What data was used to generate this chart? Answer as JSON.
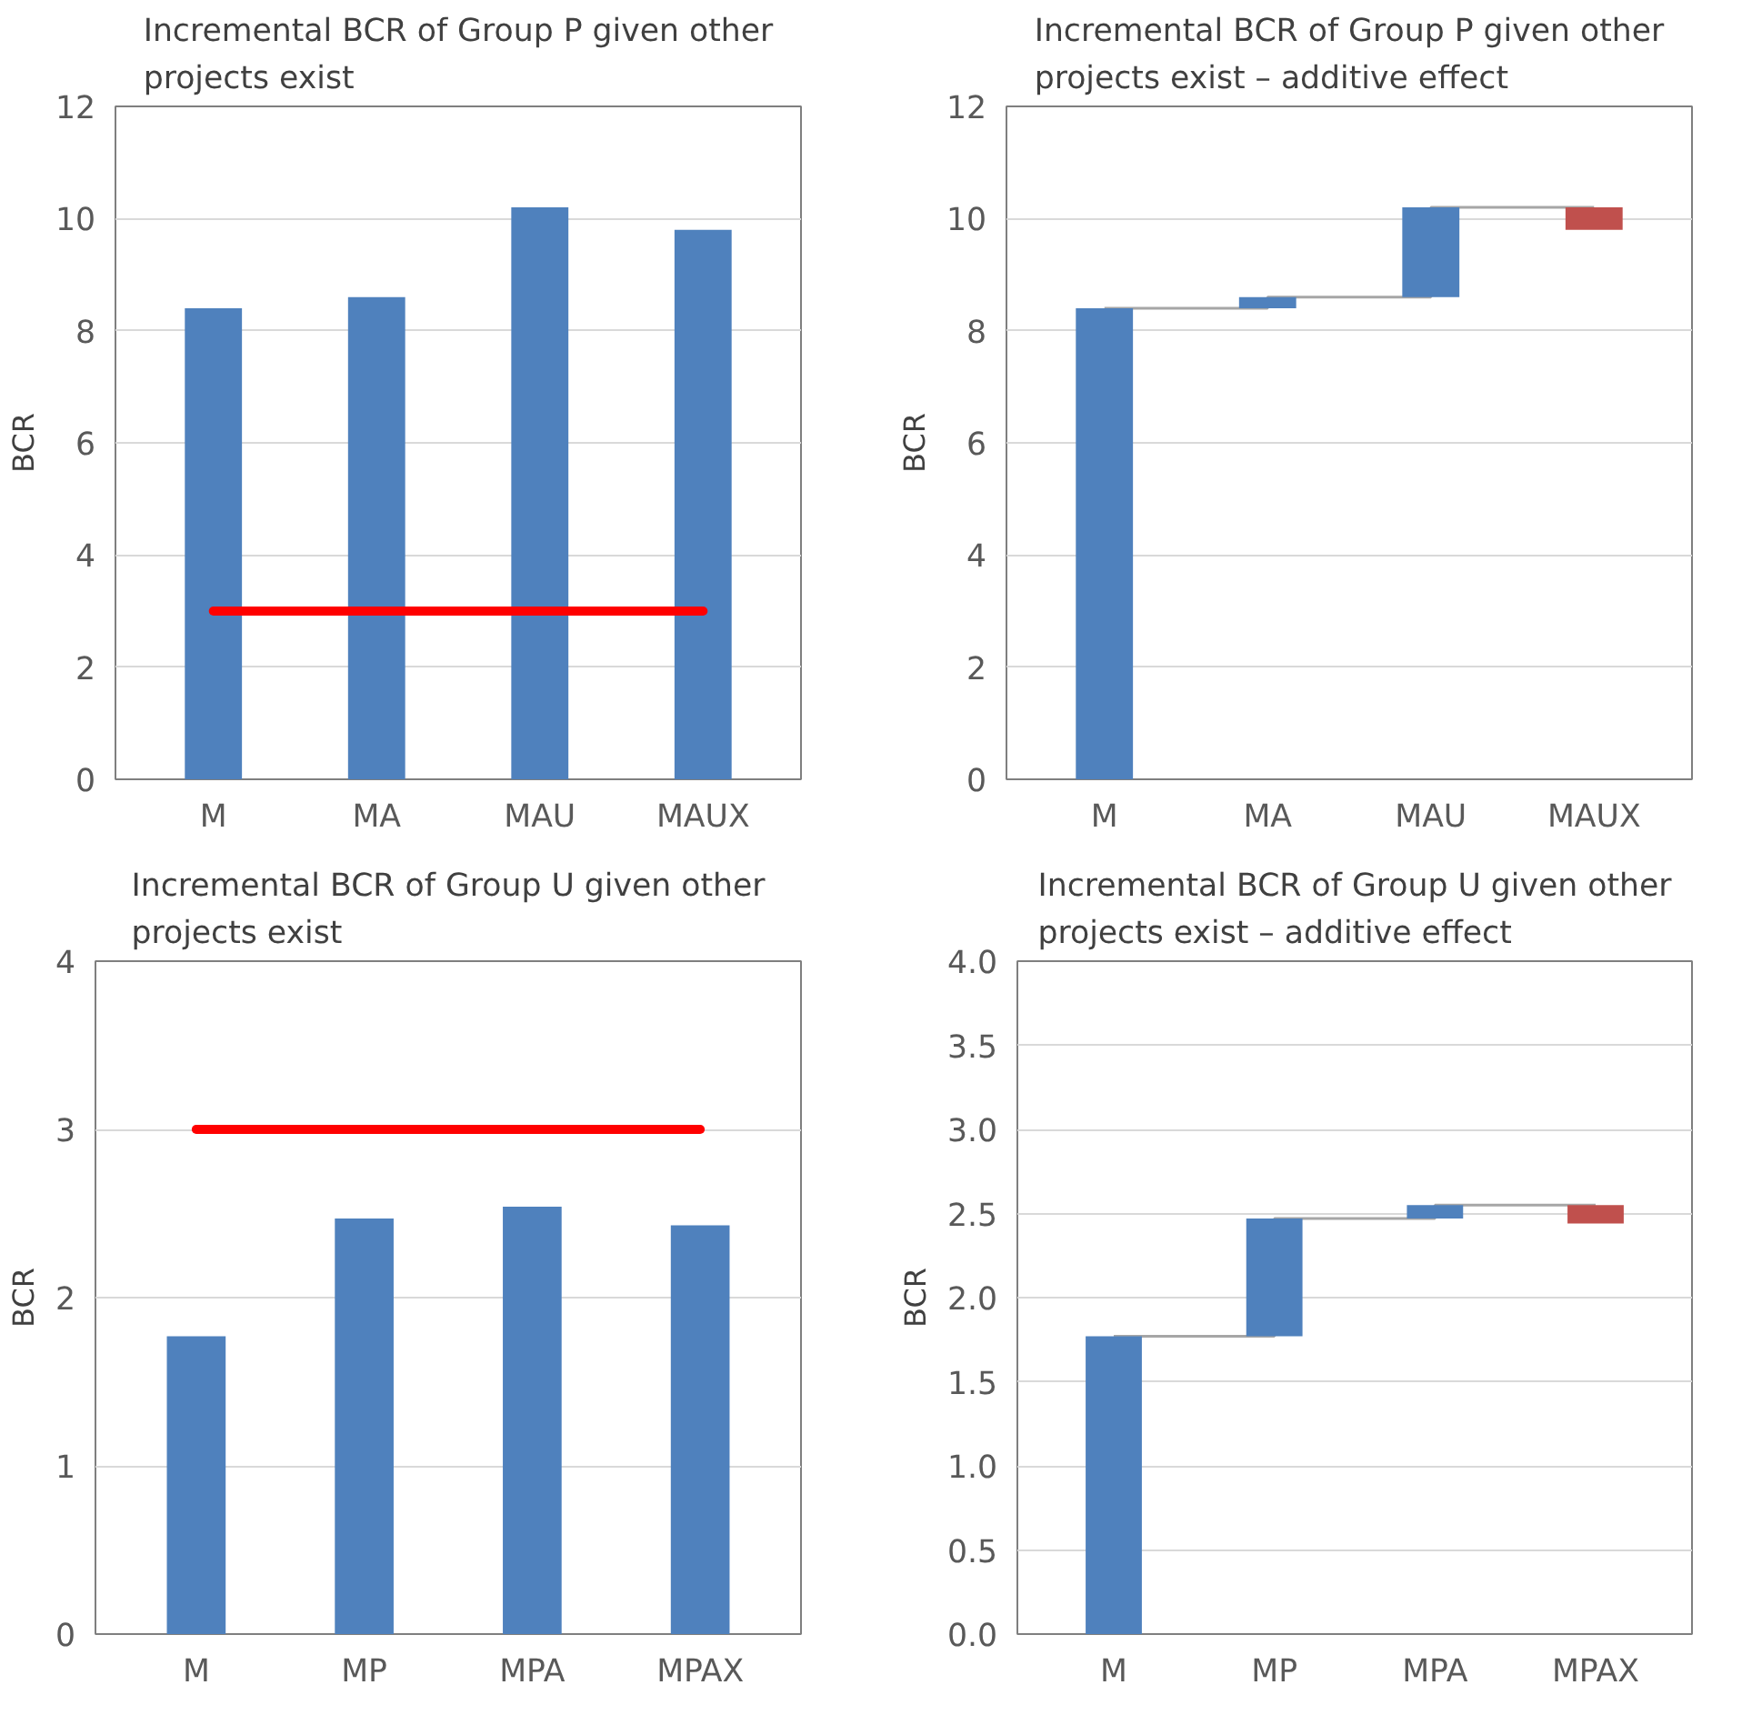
{
  "chart_data": [
    {
      "type": "bar",
      "title": "Incremental BCR of Group P given other projects exist",
      "ylabel": "BCR",
      "categories": [
        "M",
        "MA",
        "MAU",
        "MAUX"
      ],
      "ylim": [
        0,
        12
      ],
      "yticks": [
        0,
        2,
        4,
        6,
        8,
        10,
        12
      ],
      "grid": "y",
      "series": [
        {
          "color": "#4f81bd",
          "values": [
            8.4,
            8.6,
            10.2,
            9.8
          ]
        },
        {
          "type": "line",
          "color": "#ff0000",
          "values": [
            3,
            3,
            3,
            3
          ]
        }
      ]
    },
    {
      "type": "bar",
      "title": "Incremental BCR of Group P given other projects exist – additive effect",
      "ylabel": "BCR",
      "categories": [
        "M",
        "MA",
        "MAU",
        "MAUX"
      ],
      "ylim": [
        0,
        12
      ],
      "yticks": [
        0,
        2,
        4,
        6,
        8,
        10,
        12
      ],
      "grid": "y",
      "series": [
        {
          "type": "step",
          "color": "#a6a6a6",
          "values": [
            8.4,
            8.6,
            10.2,
            10.2
          ]
        },
        {
          "values": [
            8.4,
            0.2,
            1.6,
            -0.4
          ],
          "base": [
            0,
            8.4,
            8.6,
            10.2
          ],
          "colors": [
            "#4f81bd",
            "#4f81bd",
            "#4f81bd",
            "#c0504d"
          ]
        }
      ]
    },
    {
      "type": "bar",
      "title": "Incremental BCR of Group U given other projects exist",
      "ylabel": "BCR",
      "categories": [
        "M",
        "MP",
        "MPA",
        "MPAX"
      ],
      "ylim": [
        0,
        4
      ],
      "yticks": [
        0,
        1,
        2,
        3,
        4
      ],
      "grid": "y",
      "series": [
        {
          "color": "#4f81bd",
          "values": [
            1.77,
            2.47,
            2.54,
            2.43
          ]
        },
        {
          "type": "line",
          "color": "#ff0000",
          "values": [
            3,
            3,
            3,
            3
          ]
        }
      ]
    },
    {
      "type": "bar",
      "title": "Incremental BCR of Group U given other projects exist – additive effect",
      "ylabel": "BCR",
      "categories": [
        "M",
        "MP",
        "MPA",
        "MPAX"
      ],
      "ylim": [
        0,
        4
      ],
      "yticks": [
        {
          "value": 0,
          "label": "0.0"
        },
        {
          "value": 0.5,
          "label": "0.5"
        },
        {
          "value": 1,
          "label": "1.0"
        },
        {
          "value": 1.5,
          "label": "1.5"
        },
        {
          "value": 2,
          "label": "2.0"
        },
        {
          "value": 2.5,
          "label": "2.5"
        },
        {
          "value": 3,
          "label": "3.0"
        },
        {
          "value": 3.5,
          "label": "3.5"
        },
        {
          "value": 4,
          "label": "4.0"
        }
      ],
      "grid": "y",
      "series": [
        {
          "type": "step",
          "color": "#a6a6a6",
          "values": [
            1.77,
            2.47,
            2.55,
            2.55
          ]
        },
        {
          "values": [
            1.77,
            0.7,
            0.08,
            -0.11
          ],
          "base": [
            0,
            1.77,
            2.47,
            2.55
          ],
          "colors": [
            "#4f81bd",
            "#4f81bd",
            "#4f81bd",
            "#c0504d"
          ]
        }
      ]
    }
  ]
}
